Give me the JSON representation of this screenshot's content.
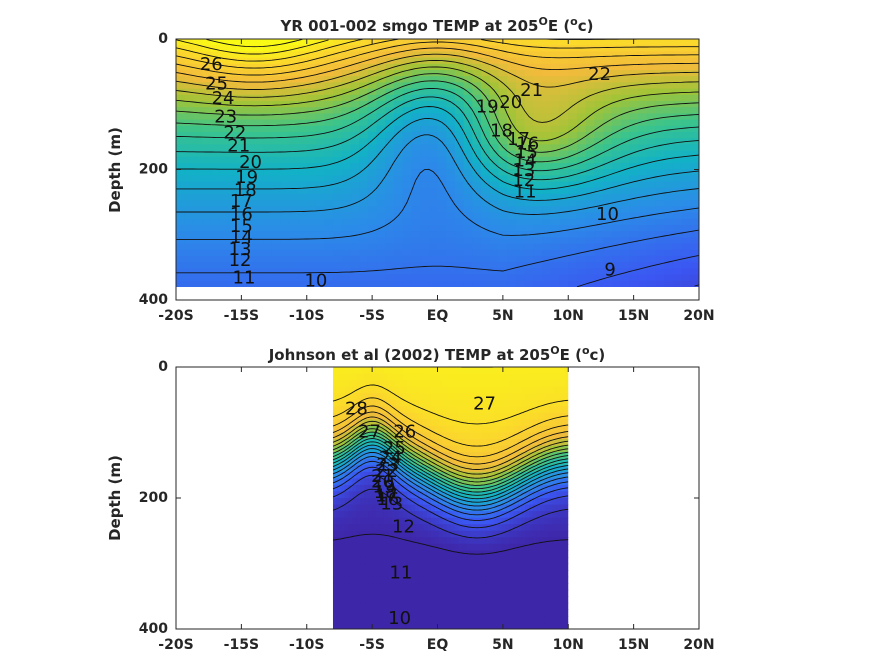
{
  "chart_data": [
    {
      "type": "contour",
      "title_main": "YR 001-002 smgo TEMP at 205",
      "title_sup": "O",
      "title_mid": "E (",
      "title_end": "c)",
      "ylabel": "Depth (m)",
      "x_ticks": [
        "-20S",
        "-15S",
        "-10S",
        "-5S",
        "EQ",
        "5N",
        "10N",
        "15N",
        "20N"
      ],
      "x_tick_values": [
        -20,
        -15,
        -10,
        -5,
        0,
        5,
        10,
        15,
        20
      ],
      "y_ticks": [
        "0",
        "200",
        "400"
      ],
      "y_tick_values": [
        0,
        200,
        400
      ],
      "xlim": [
        -20,
        20
      ],
      "ylim": [
        400,
        0
      ],
      "data_extent": {
        "x": [
          -20,
          20
        ],
        "depth": [
          0,
          380
        ]
      },
      "colormap": [
        "#3e26a8",
        "#3b56f2",
        "#2b8ce8",
        "#12b2c6",
        "#3bc48b",
        "#a0c438",
        "#f2bb3b",
        "#fbd52e",
        "#f9fb15"
      ],
      "color_range": [
        8,
        29
      ],
      "contour_labels": [
        {
          "text": "26",
          "x": -17.3,
          "d": 40
        },
        {
          "text": "25",
          "x": -16.9,
          "d": 70
        },
        {
          "text": "24",
          "x": -16.4,
          "d": 92
        },
        {
          "text": "23",
          "x": -16.2,
          "d": 120
        },
        {
          "text": "22",
          "x": -15.5,
          "d": 145
        },
        {
          "text": "21",
          "x": -15.2,
          "d": 165
        },
        {
          "text": "20",
          "x": -14.3,
          "d": 190
        },
        {
          "text": "19",
          "x": -14.6,
          "d": 213
        },
        {
          "text": "18",
          "x": -14.7,
          "d": 233
        },
        {
          "text": "17",
          "x": -15.0,
          "d": 250
        },
        {
          "text": "16",
          "x": -15.0,
          "d": 270
        },
        {
          "text": "15",
          "x": -15.0,
          "d": 288
        },
        {
          "text": "14",
          "x": -15.0,
          "d": 305
        },
        {
          "text": "13",
          "x": -15.1,
          "d": 323
        },
        {
          "text": "12",
          "x": -15.1,
          "d": 340
        },
        {
          "text": "11",
          "x": -14.8,
          "d": 367
        },
        {
          "text": "10",
          "x": -9.3,
          "d": 372
        },
        {
          "text": "9",
          "x": 13.2,
          "d": 355
        },
        {
          "text": "10",
          "x": 13.0,
          "d": 270
        },
        {
          "text": "11",
          "x": 6.7,
          "d": 235
        },
        {
          "text": "12",
          "x": 6.6,
          "d": 218
        },
        {
          "text": "13",
          "x": 6.6,
          "d": 202
        },
        {
          "text": "14",
          "x": 6.7,
          "d": 188
        },
        {
          "text": "15",
          "x": 6.8,
          "d": 175
        },
        {
          "text": "16",
          "x": 6.9,
          "d": 162
        },
        {
          "text": "17",
          "x": 6.2,
          "d": 155
        },
        {
          "text": "18",
          "x": 4.9,
          "d": 142
        },
        {
          "text": "19",
          "x": 3.8,
          "d": 105
        },
        {
          "text": "20",
          "x": 5.6,
          "d": 98
        },
        {
          "text": "21",
          "x": 7.2,
          "d": 80
        },
        {
          "text": "22",
          "x": 12.4,
          "d": 55
        }
      ]
    },
    {
      "type": "contour",
      "title_main": "Johnson et al (2002) TEMP at 205",
      "title_sup": "O",
      "title_mid": "E (",
      "title_end": "c)",
      "ylabel": "Depth (m)",
      "x_ticks": [
        "-20S",
        "-15S",
        "-10S",
        "-5S",
        "EQ",
        "5N",
        "10N",
        "15N",
        "20N"
      ],
      "x_tick_values": [
        -20,
        -15,
        -10,
        -5,
        0,
        5,
        10,
        15,
        20
      ],
      "y_ticks": [
        "0",
        "200",
        "400"
      ],
      "y_tick_values": [
        0,
        200,
        400
      ],
      "xlim": [
        -20,
        20
      ],
      "ylim": [
        400,
        0
      ],
      "data_extent": {
        "x": [
          -8,
          10
        ],
        "depth": [
          0,
          400
        ]
      },
      "colormap": [
        "#3e26a8",
        "#3b56f2",
        "#2b8ce8",
        "#12b2c6",
        "#3bc48b",
        "#a0c438",
        "#f2bb3b",
        "#fbd52e",
        "#f9fb15"
      ],
      "color_range": [
        8,
        30
      ],
      "contour_labels": [
        {
          "text": "28",
          "x": -6.2,
          "d": 65
        },
        {
          "text": "27",
          "x": -5.2,
          "d": 100
        },
        {
          "text": "26",
          "x": -2.5,
          "d": 100
        },
        {
          "text": "27",
          "x": 3.6,
          "d": 57
        },
        {
          "text": "25",
          "x": -3.3,
          "d": 125
        },
        {
          "text": "24",
          "x": -3.6,
          "d": 140
        },
        {
          "text": "23",
          "x": -3.8,
          "d": 150
        },
        {
          "text": "22",
          "x": -3.9,
          "d": 160
        },
        {
          "text": "21",
          "x": -4.2,
          "d": 168
        },
        {
          "text": "20",
          "x": -4.2,
          "d": 176
        },
        {
          "text": "19",
          "x": -4.1,
          "d": 184
        },
        {
          "text": "18",
          "x": -4.0,
          "d": 192
        },
        {
          "text": "17",
          "x": -3.9,
          "d": 198
        },
        {
          "text": "16",
          "x": -3.8,
          "d": 203
        },
        {
          "text": "13",
          "x": -3.5,
          "d": 210
        },
        {
          "text": "12",
          "x": -2.6,
          "d": 245
        },
        {
          "text": "11",
          "x": -2.8,
          "d": 315
        },
        {
          "text": "10",
          "x": -2.9,
          "d": 385
        }
      ]
    }
  ]
}
